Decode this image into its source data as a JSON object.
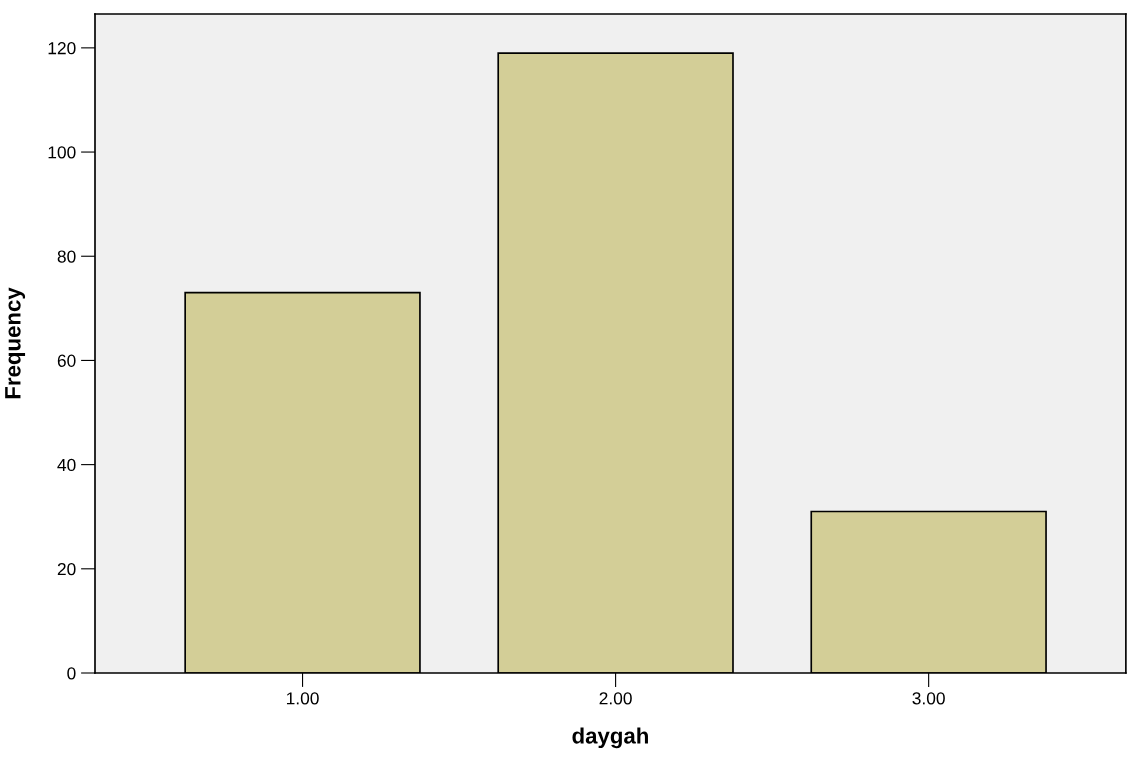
{
  "chart_data": {
    "type": "bar",
    "xlabel": "daygah",
    "ylabel": "Frequency",
    "categories": [
      "1.00",
      "2.00",
      "3.00"
    ],
    "values": [
      73,
      119,
      31
    ],
    "color": "#d3ce97",
    "ylim": [
      0,
      126.5
    ],
    "yticks": [
      0,
      20,
      40,
      60,
      80,
      100,
      120
    ],
    "grid": false
  }
}
